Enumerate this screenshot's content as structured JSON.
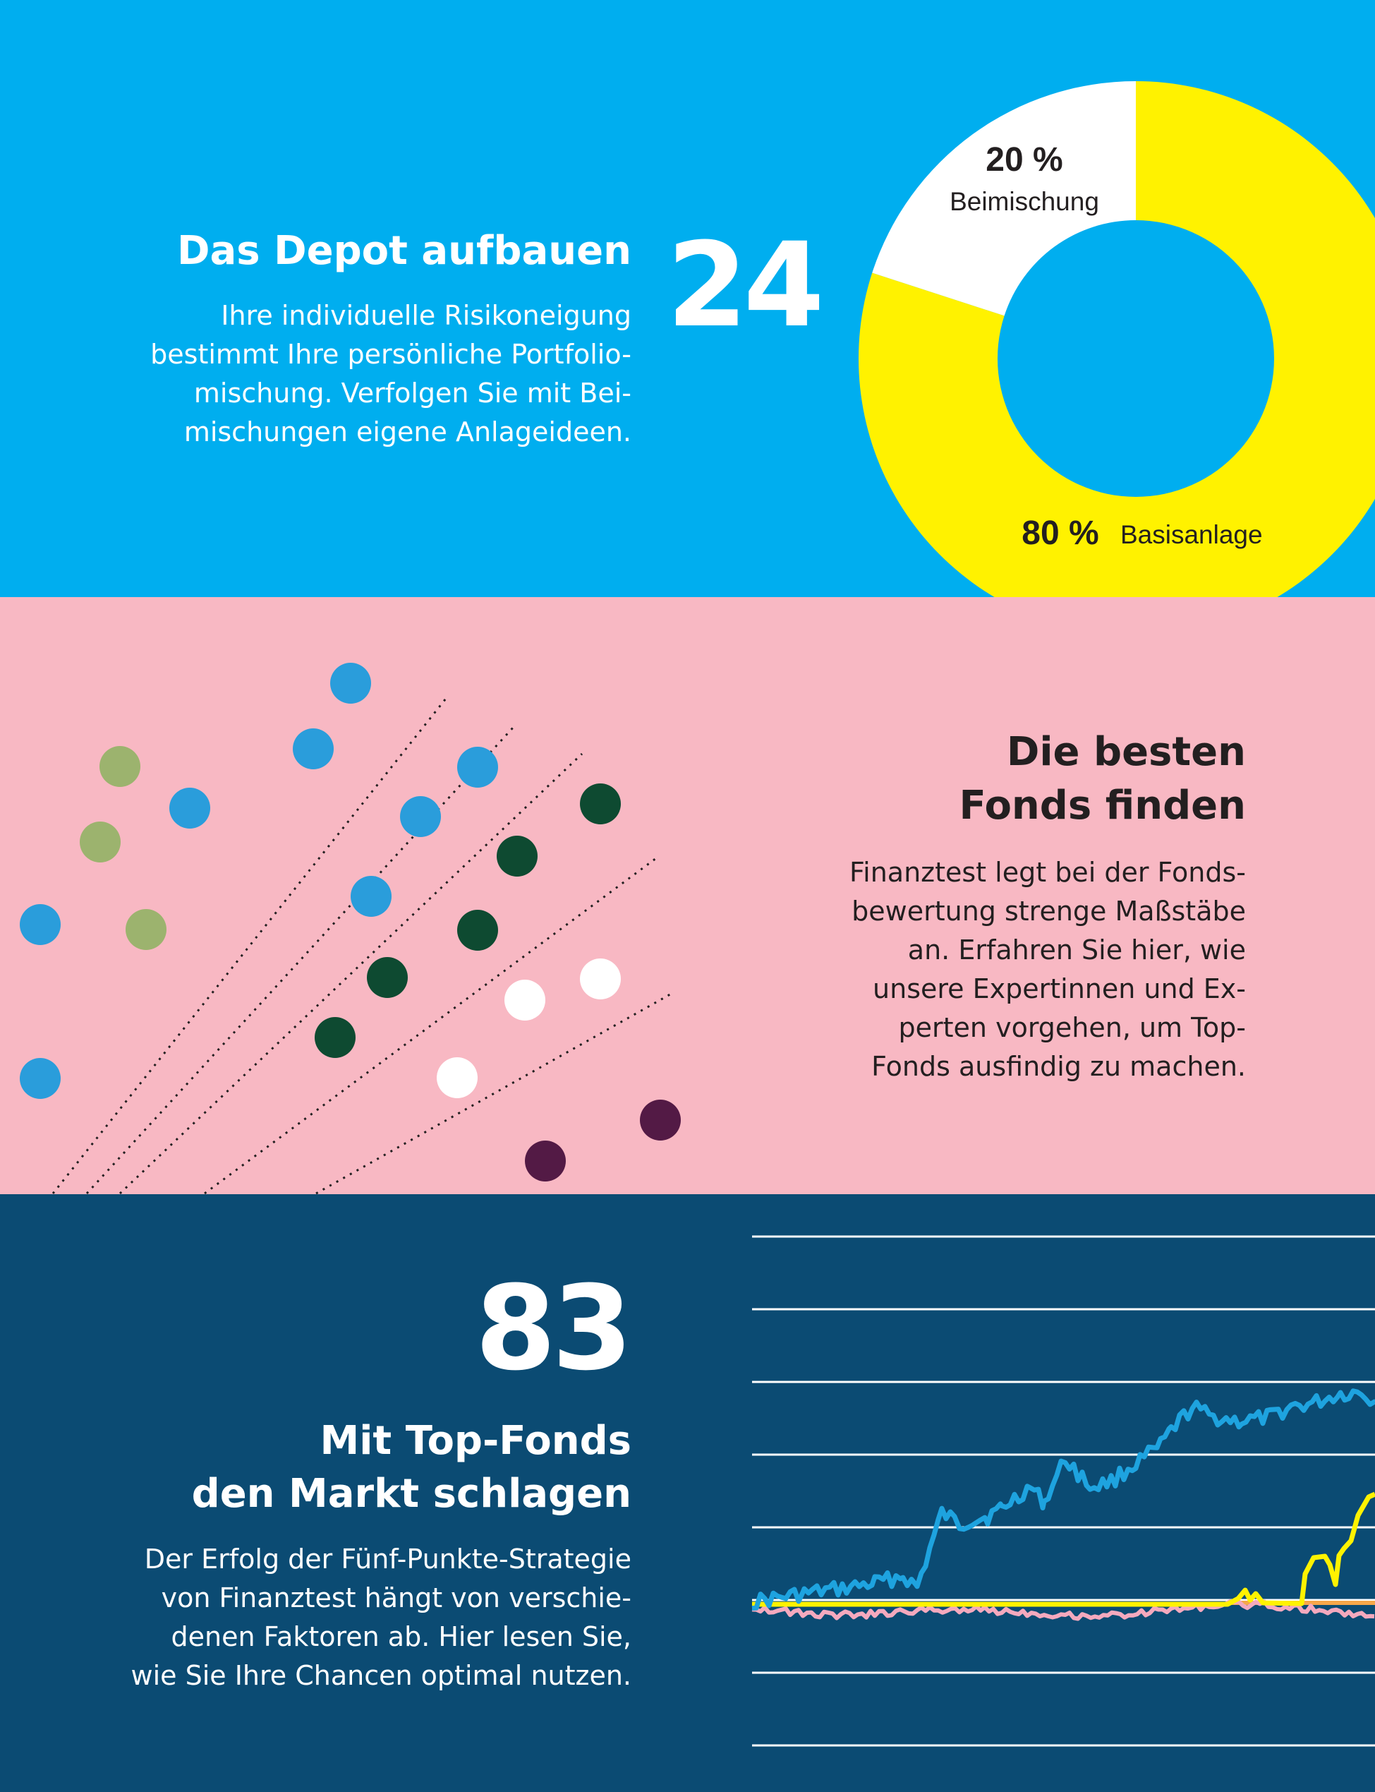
{
  "depot": {
    "title": "Das Depot aufbauen",
    "page_number": "24",
    "text": [
      "Ihre individuelle Risikoneigung",
      "bestimmt Ihre persönliche Portfolio-",
      "mischung. Verfolgen Sie mit Bei-",
      "mischungen eigene Anlageideen."
    ],
    "donut": {
      "slices": [
        {
          "label": "Beimischung",
          "percent_text": "20 %",
          "value": 20,
          "color": "#FFFFFF"
        },
        {
          "label": "Basisanlage",
          "percent_text": "80 %",
          "value": 80,
          "color": "#FFF200"
        }
      ]
    }
  },
  "fonds": {
    "title": [
      "Die besten",
      "Fonds finden"
    ],
    "text": [
      "Finanztest legt bei der Fonds-",
      "bewertung strenge Maßstäbe",
      "an. Erfahren Sie hier, wie",
      "unsere Expertinnen und Ex-",
      "perten vorgehen, um Top-",
      "Fonds ausfindig zu machen."
    ],
    "dot_colors": {
      "light_blue": "#2A9DDB",
      "olive": "#9CB36E",
      "dark_green": "#0E4A31",
      "white": "#FFFFFF",
      "purple": "#531A45"
    }
  },
  "markt": {
    "page_number": "83",
    "title": [
      "Mit Top-Fonds",
      "den Markt schlagen"
    ],
    "text": [
      "Der Erfolg der Fünf-Punkte-Strategie",
      "von Finanztest hängt von verschie-",
      "denen Faktoren ab. Hier lesen Sie,",
      "wie Sie Ihre Chancen optimal nutzen."
    ],
    "colors": {
      "blue": "#1EA3DF",
      "yellow": "#FFF200",
      "pink": "#F4A9BE",
      "orange": "#F7A74A",
      "grid": "#FFFFFF"
    }
  }
}
